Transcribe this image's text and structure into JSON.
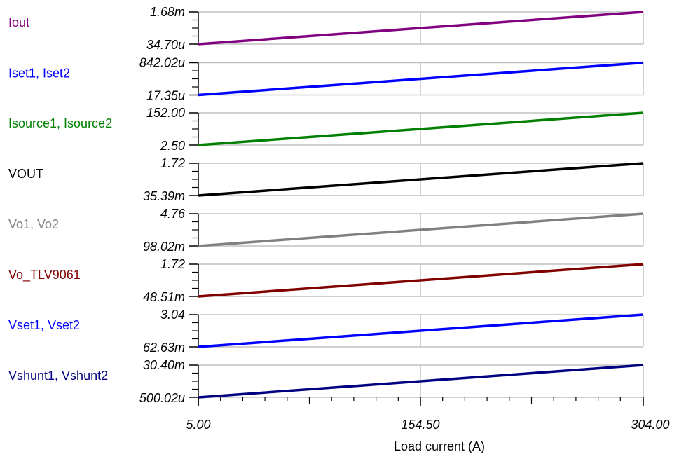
{
  "chart_data": {
    "type": "line",
    "title": "",
    "xlabel": "Load current (A)",
    "xlim": [
      5.0,
      304.0
    ],
    "x_ticks": [
      "5.00",
      "154.50",
      "304.00"
    ],
    "x": [
      5.0,
      304.0
    ],
    "grid": true,
    "layout": "stacked-panels",
    "series": [
      {
        "name": "Iout",
        "color": "#800080",
        "y_min_label": "34.70u",
        "y_max_label": "1.68m",
        "ylim": [
          3.47e-05,
          0.00168
        ],
        "values": [
          3.47e-05,
          0.00168
        ]
      },
      {
        "name": "Iset1, Iset2",
        "color": "#0000FF",
        "y_min_label": "17.35u",
        "y_max_label": "842.02u",
        "ylim": [
          1.735e-05,
          0.00084202
        ],
        "values": [
          1.735e-05,
          0.00084202
        ]
      },
      {
        "name": "Isource1, Isource2",
        "color": "#008000",
        "y_min_label": "2.50",
        "y_max_label": "152.00",
        "ylim": [
          2.5,
          152.0
        ],
        "values": [
          2.5,
          152.0
        ]
      },
      {
        "name": "VOUT",
        "color": "#000000",
        "y_min_label": "35.39m",
        "y_max_label": "1.72",
        "ylim": [
          0.03539,
          1.72
        ],
        "values": [
          0.03539,
          1.72
        ]
      },
      {
        "name": "Vo1, Vo2",
        "color": "#808080",
        "y_min_label": "98.02m",
        "y_max_label": "4.76",
        "ylim": [
          0.09802,
          4.76
        ],
        "values": [
          0.09802,
          4.76
        ]
      },
      {
        "name": "Vo_TLV9061",
        "color": "#800000",
        "y_min_label": "48.51m",
        "y_max_label": "1.72",
        "ylim": [
          0.04851,
          1.72
        ],
        "values": [
          0.04851,
          1.72
        ]
      },
      {
        "name": "Vset1, Vset2",
        "color": "#0000FF",
        "y_min_label": "62.63m",
        "y_max_label": "3.04",
        "ylim": [
          0.06263,
          3.04
        ],
        "values": [
          0.06263,
          3.04
        ]
      },
      {
        "name": "Vshunt1, Vshunt2",
        "color": "#000080",
        "y_min_label": "500.02u",
        "y_max_label": "30.40m",
        "ylim": [
          0.00050002,
          0.0304
        ],
        "values": [
          0.00050002,
          0.0304
        ]
      }
    ]
  }
}
